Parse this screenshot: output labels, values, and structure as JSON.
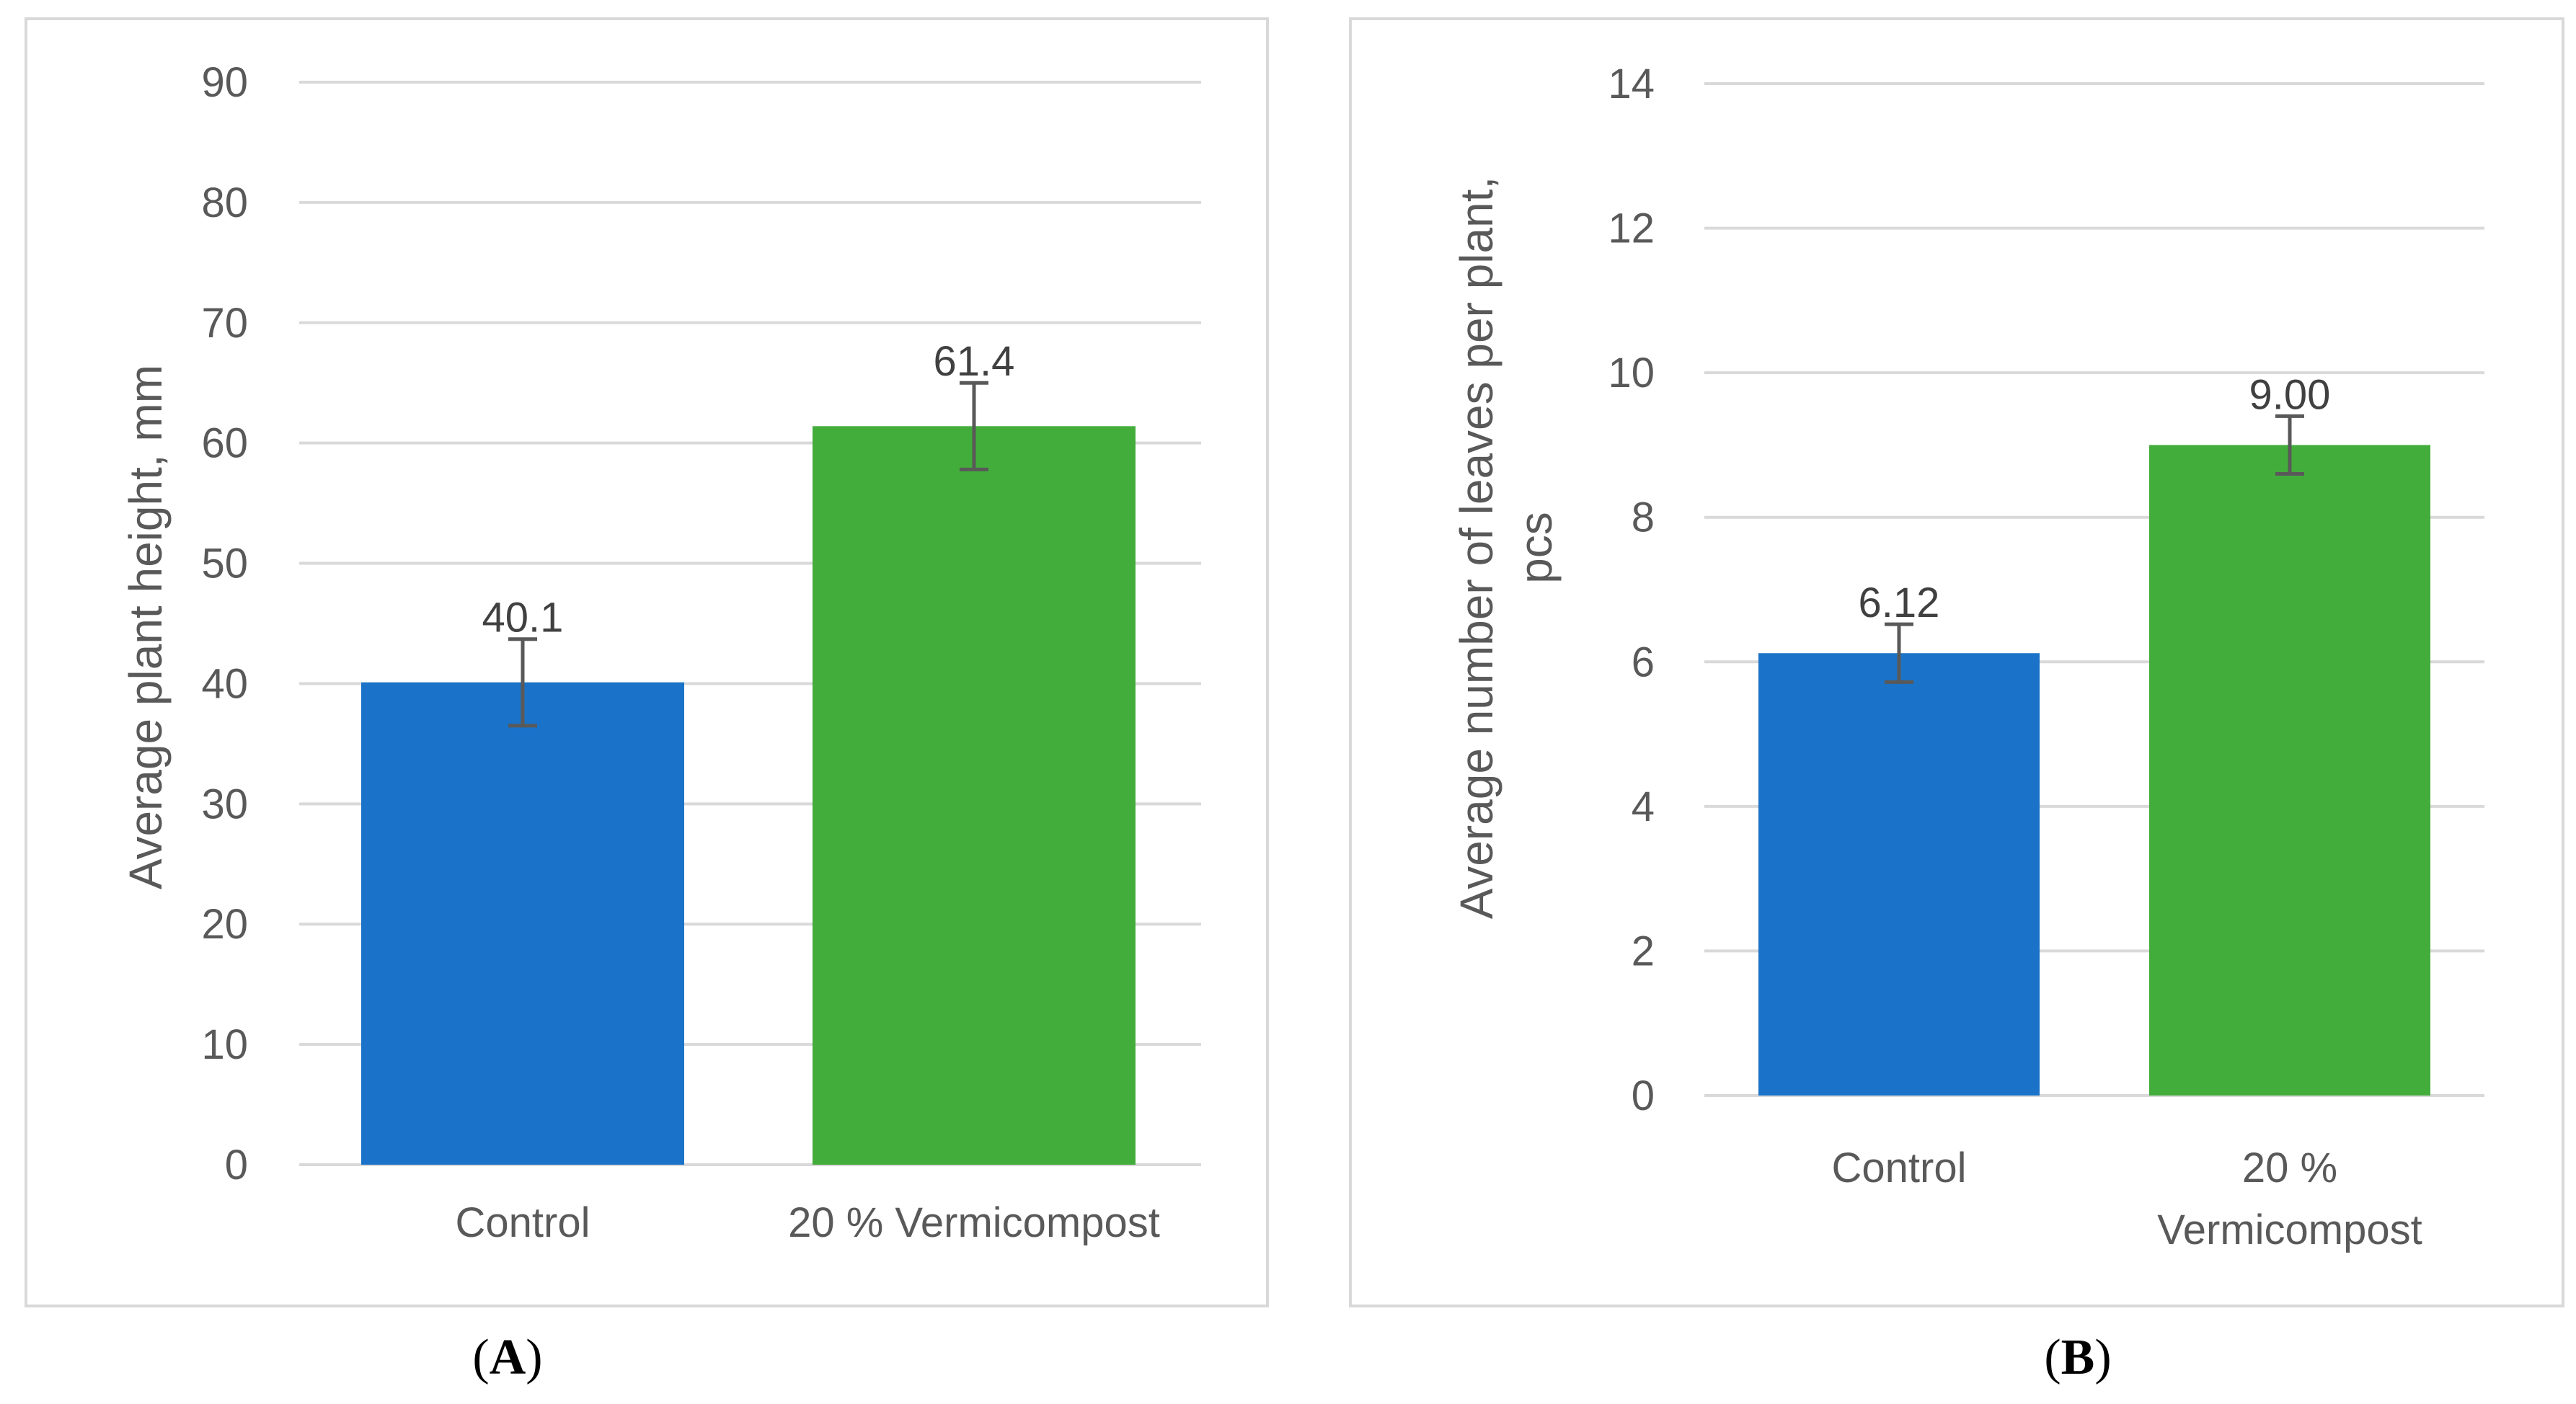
{
  "chart_data": [
    {
      "type": "bar",
      "panel": "A",
      "ylabel": "Average plant height, mm",
      "xlabel": "",
      "ylim": [
        0,
        90
      ],
      "ytick_step": 10,
      "grid": true,
      "categories": [
        "Control",
        "20 % Vermicompost"
      ],
      "values": [
        40.1,
        61.4
      ],
      "value_labels": [
        "40.1",
        "61.4"
      ],
      "errors": [
        3.6,
        3.6
      ],
      "colors": [
        "#1a73c8",
        "#43ad3c"
      ]
    },
    {
      "type": "bar",
      "panel": "B",
      "ylabel": "Average number of leaves per plant, pcs",
      "ylabel_lines": [
        "Average number of leaves per plant,",
        "pcs"
      ],
      "xlabel": "",
      "ylim": [
        0,
        14
      ],
      "ytick_step": 2,
      "grid": true,
      "categories": [
        "Control",
        "20 % Vermicompost"
      ],
      "category_lines": [
        [
          "Control"
        ],
        [
          "20 %",
          "Vermicompost"
        ]
      ],
      "values": [
        6.12,
        9.0
      ],
      "value_labels": [
        "6.12",
        "9.00"
      ],
      "errors": [
        0.4,
        0.4
      ],
      "colors": [
        "#1a73c8",
        "#43ad3c"
      ]
    }
  ],
  "panel_labels": {
    "a": {
      "open": "(",
      "letter": "A",
      "close": ")"
    },
    "b": {
      "open": "(",
      "letter": "B",
      "close": ")"
    }
  }
}
